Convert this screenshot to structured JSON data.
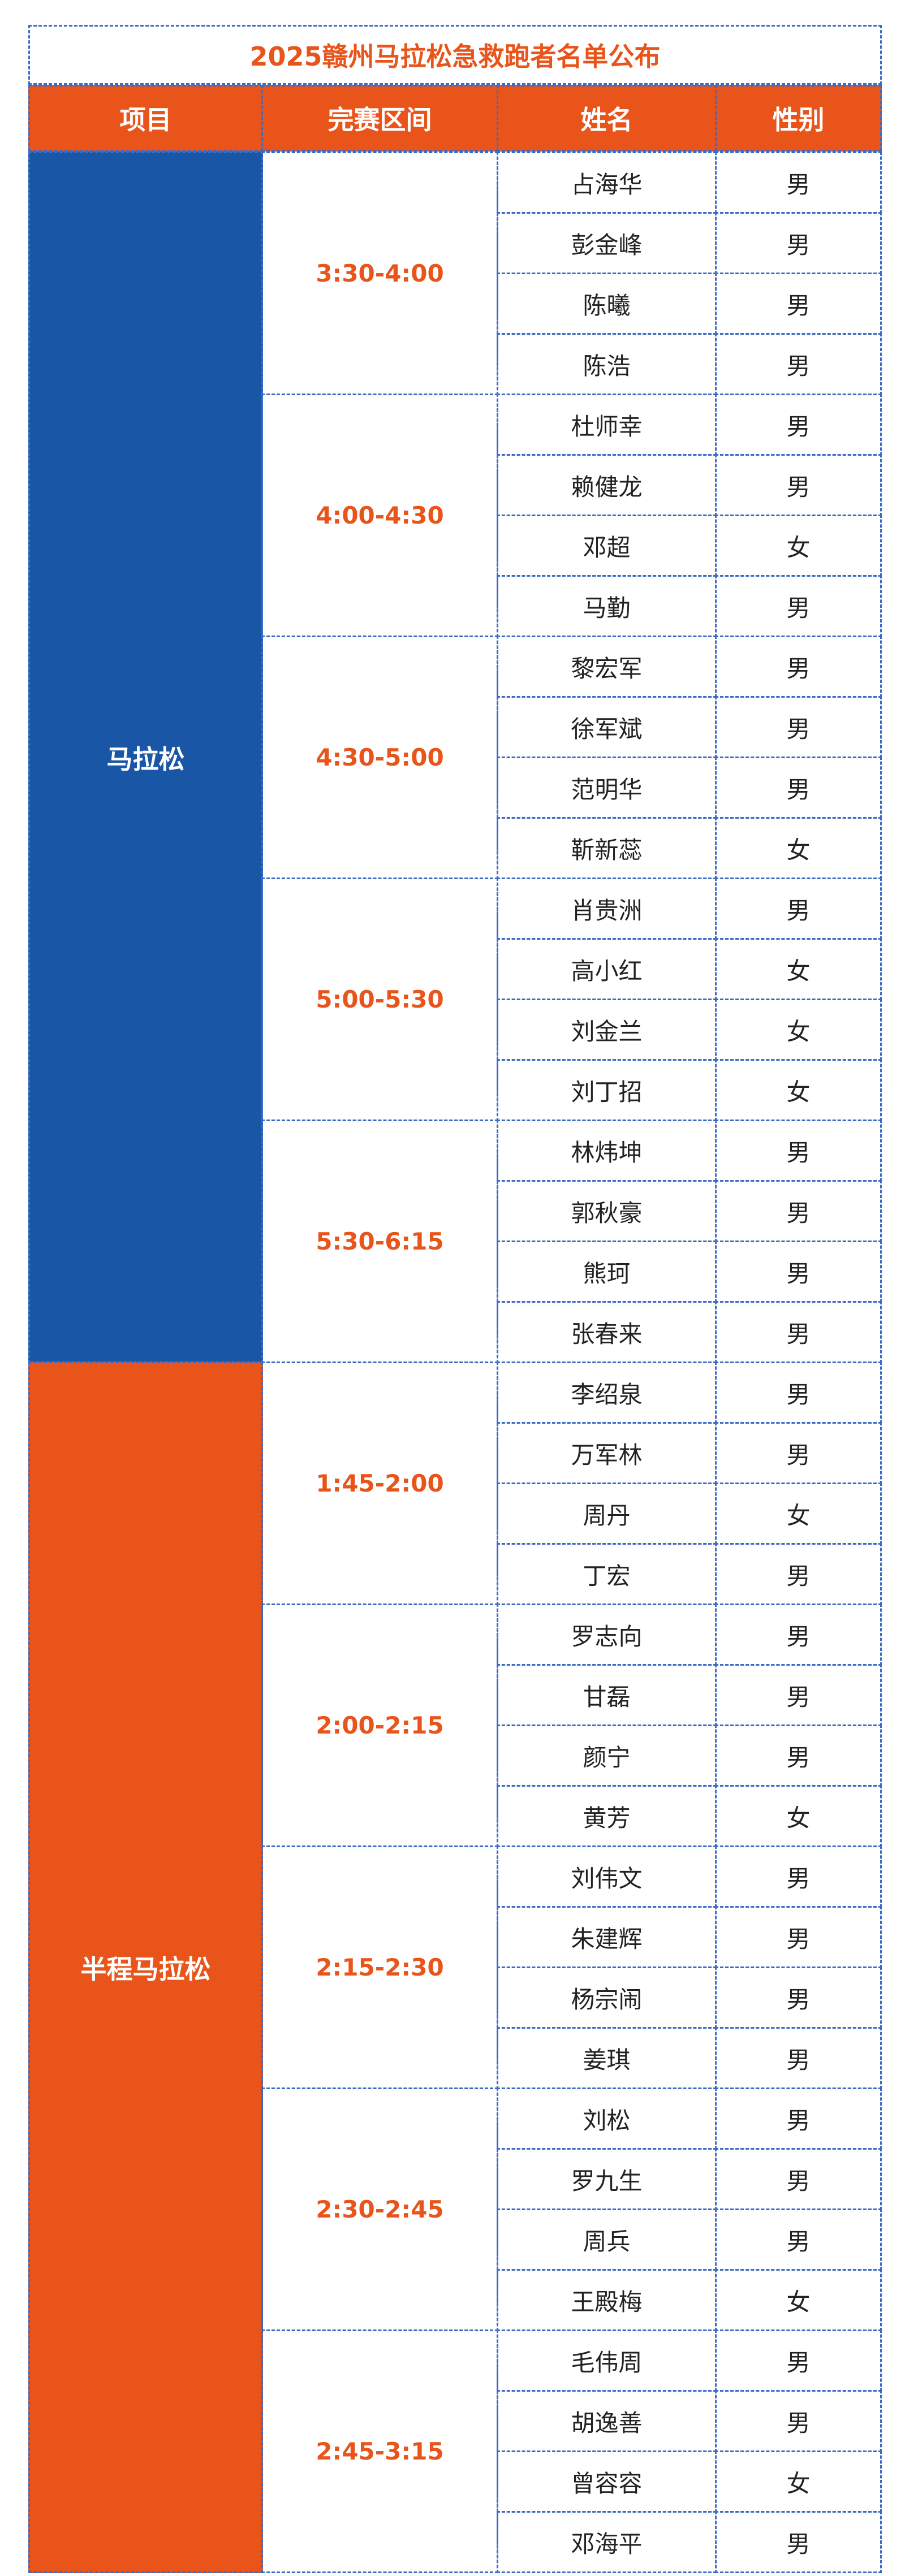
{
  "title": "2025赣州马拉松急救跑者名单公布",
  "table": {
    "header": [
      "项目",
      "完赛区间",
      "姓名",
      "性别"
    ],
    "groups": [
      {
        "project": "马拉松",
        "intervals": [
          {
            "range": "3:30-4:00",
            "people": [
              [
                "占海华",
                "男"
              ],
              [
                "彭金峰",
                "男"
              ],
              [
                "陈曦",
                "男"
              ],
              [
                "陈浩",
                "男"
              ]
            ]
          },
          {
            "range": "4:00-4:30",
            "people": [
              [
                "杜师幸",
                "男"
              ],
              [
                "赖健龙",
                "男"
              ],
              [
                "邓超",
                "女"
              ],
              [
                "马勤",
                "男"
              ]
            ]
          },
          {
            "range": "4:30-5:00",
            "people": [
              [
                "黎宏军",
                "男"
              ],
              [
                "徐军斌",
                "男"
              ],
              [
                "范明华",
                "男"
              ],
              [
                "靳新蕊",
                "女"
              ]
            ]
          },
          {
            "range": "5:00-5:30",
            "people": [
              [
                "肖贵洲",
                "男"
              ],
              [
                "高小红",
                "女"
              ],
              [
                "刘金兰",
                "女"
              ],
              [
                "刘丁招",
                "女"
              ]
            ]
          },
          {
            "range": "5:30-6:15",
            "people": [
              [
                "林炜坤",
                "男"
              ],
              [
                "郭秋豪",
                "男"
              ],
              [
                "熊珂",
                "男"
              ],
              [
                "张春来",
                "男"
              ]
            ]
          }
        ]
      },
      {
        "project": "半程马拉松",
        "intervals": [
          {
            "range": "1:45-2:00",
            "people": [
              [
                "李绍泉",
                "男"
              ],
              [
                "万军林",
                "男"
              ],
              [
                "周丹",
                "女"
              ],
              [
                "丁宏",
                "男"
              ]
            ]
          },
          {
            "range": "2:00-2:15",
            "people": [
              [
                "罗志向",
                "男"
              ],
              [
                "甘磊",
                "男"
              ],
              [
                "颜宁",
                "男"
              ],
              [
                "黄芳",
                "女"
              ]
            ]
          },
          {
            "range": "2:15-2:30",
            "people": [
              [
                "刘伟文",
                "男"
              ],
              [
                "朱建辉",
                "男"
              ],
              [
                "杨宗闹",
                "男"
              ],
              [
                "姜琪",
                "男"
              ]
            ]
          },
          {
            "range": "2:30-2:45",
            "people": [
              [
                "刘松",
                "男"
              ],
              [
                "罗九生",
                "男"
              ],
              [
                "周兵",
                "男"
              ],
              [
                "王殿梅",
                "女"
              ]
            ]
          },
          {
            "range": "2:45-3:15",
            "people": [
              [
                "毛伟周",
                "男"
              ],
              [
                "胡逸善",
                "男"
              ],
              [
                "曾容容",
                "女"
              ],
              [
                "邓海平",
                "男"
              ]
            ]
          }
        ]
      }
    ]
  }
}
